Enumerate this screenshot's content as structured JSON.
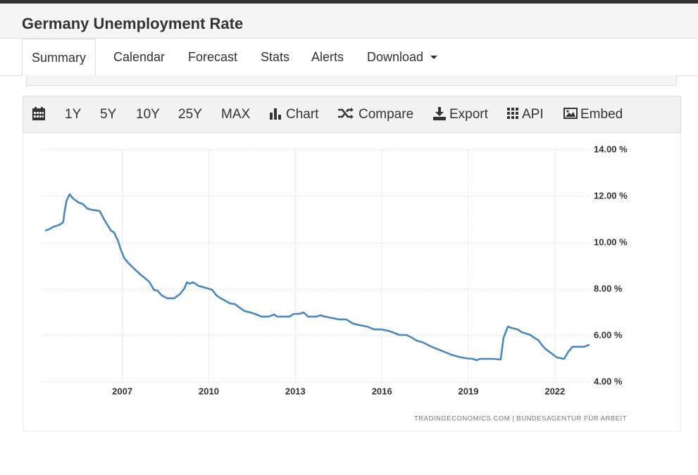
{
  "header": {
    "title": "Germany Unemployment Rate"
  },
  "tabs": [
    "Summary",
    "Calendar",
    "Forecast",
    "Stats",
    "Alerts",
    "Download"
  ],
  "toolbar": [
    "1Y",
    "5Y",
    "10Y",
    "25Y",
    "MAX",
    "Chart",
    "Compare",
    "Export",
    "API",
    "Embed"
  ],
  "chart_data": {
    "type": "line",
    "source": "TRADINGECONOMICS.COM  |  BUNDESAGENTUR FÜR ARBEIT",
    "color": "#4f87b9",
    "grid": true,
    "x": [
      2004.32,
      2004.46,
      2004.63,
      2004.8,
      2004.95,
      2005.0,
      2005.07,
      2005.17,
      2005.29,
      2005.49,
      2005.63,
      2005.78,
      2005.93,
      2006.12,
      2006.22,
      2006.37,
      2006.46,
      2006.61,
      2006.71,
      2006.85,
      2006.95,
      2007.07,
      2007.24,
      2007.44,
      2007.68,
      2007.93,
      2008.1,
      2008.22,
      2008.37,
      2008.56,
      2008.8,
      2009.0,
      2009.15,
      2009.24,
      2009.34,
      2009.44,
      2009.54,
      2009.63,
      2009.8,
      2009.98,
      2010.12,
      2010.27,
      2010.41,
      2010.61,
      2010.73,
      2010.9,
      2011.1,
      2011.24,
      2011.44,
      2011.59,
      2011.83,
      2012.07,
      2012.27,
      2012.37,
      2012.8,
      2012.95,
      2013.15,
      2013.29,
      2013.44,
      2013.73,
      2013.88,
      2014.02,
      2014.27,
      2014.51,
      2014.76,
      2015.0,
      2015.24,
      2015.49,
      2015.73,
      2015.98,
      2016.22,
      2016.37,
      2016.61,
      2016.85,
      2017.05,
      2017.2,
      2017.44,
      2017.68,
      2017.93,
      2018.17,
      2018.41,
      2018.66,
      2018.9,
      2019.15,
      2019.29,
      2019.39,
      2019.88,
      2020.12,
      2020.22,
      2020.37,
      2020.51,
      2020.71,
      2020.85,
      2021.0,
      2021.15,
      2021.29,
      2021.44,
      2021.54,
      2021.68,
      2021.88,
      2022.07,
      2022.32,
      2022.46,
      2022.61,
      2023.0,
      2023.2
    ],
    "values": [
      10.52,
      10.58,
      10.7,
      10.76,
      10.88,
      11.36,
      11.82,
      12.09,
      11.91,
      11.73,
      11.67,
      11.48,
      11.42,
      11.39,
      11.36,
      11.0,
      10.82,
      10.52,
      10.45,
      10.09,
      9.7,
      9.33,
      9.09,
      8.85,
      8.58,
      8.33,
      7.97,
      7.94,
      7.73,
      7.61,
      7.61,
      7.79,
      8.03,
      8.3,
      8.24,
      8.3,
      8.24,
      8.15,
      8.09,
      8.03,
      7.97,
      7.73,
      7.61,
      7.48,
      7.39,
      7.36,
      7.18,
      7.06,
      7.0,
      6.94,
      6.82,
      6.82,
      6.91,
      6.82,
      6.82,
      6.94,
      6.94,
      7.0,
      6.82,
      6.82,
      6.88,
      6.82,
      6.76,
      6.7,
      6.7,
      6.52,
      6.45,
      6.39,
      6.27,
      6.27,
      6.21,
      6.15,
      6.03,
      6.03,
      5.91,
      5.79,
      5.7,
      5.55,
      5.42,
      5.3,
      5.18,
      5.09,
      5.03,
      5.0,
      4.94,
      5.0,
      5.0,
      4.97,
      5.91,
      6.39,
      6.33,
      6.27,
      6.15,
      6.09,
      6.03,
      5.91,
      5.79,
      5.61,
      5.42,
      5.24,
      5.06,
      5.0,
      5.3,
      5.52,
      5.52,
      5.61
    ],
    "xlim": [
      2004.2,
      2023.25
    ],
    "xticks": [
      2007,
      2010,
      2013,
      2016,
      2019,
      2022
    ],
    "ylim": [
      4,
      14
    ],
    "yticks": [
      {
        "value": 4,
        "label": "4.00 %"
      },
      {
        "value": 6,
        "label": "6.00 %"
      },
      {
        "value": 8,
        "label": "8.00 %"
      },
      {
        "value": 10,
        "label": "10.00 %"
      },
      {
        "value": 12,
        "label": "12.00 %"
      },
      {
        "value": 14,
        "label": "14.00 %"
      }
    ]
  }
}
